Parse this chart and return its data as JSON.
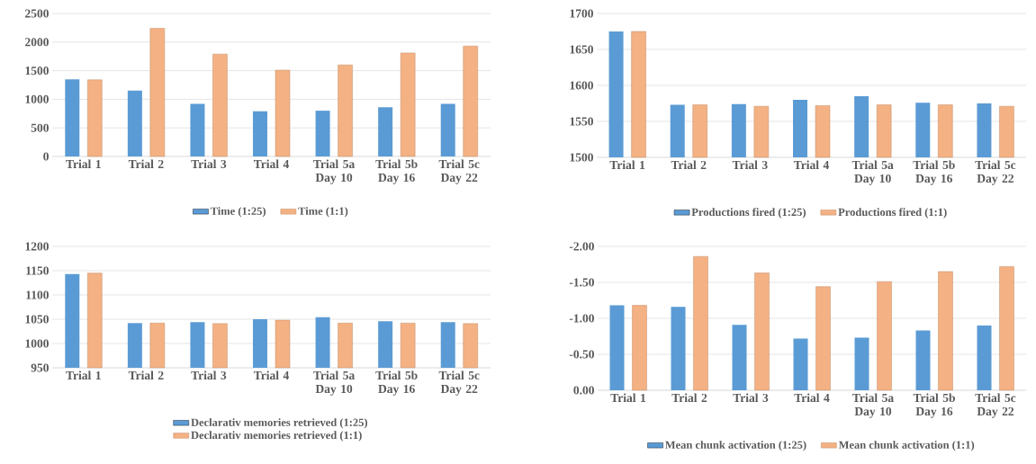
{
  "chart_data": [
    {
      "type": "bar",
      "categories": [
        "Trial 1",
        "Trial 2",
        "Trial 3",
        "Trial 4",
        "Trial 5a Day 10",
        "Trial 5b Day 16",
        "Trial 5c Day 22"
      ],
      "ylim": [
        0,
        2500
      ],
      "yticks": [
        0,
        500,
        1000,
        1500,
        2000,
        2500
      ],
      "grid": "y",
      "legend": "bottom",
      "series": [
        {
          "name": "Time (1:25)",
          "color": "#5b9bd5",
          "values": [
            1350,
            1150,
            920,
            790,
            800,
            860,
            920
          ]
        },
        {
          "name": "Time (1:1)",
          "color": "#f4b183",
          "values": [
            1340,
            2240,
            1790,
            1510,
            1600,
            1810,
            1930
          ]
        }
      ]
    },
    {
      "type": "bar",
      "categories": [
        "Trial 1",
        "Trial 2",
        "Trial 3",
        "Trial 4",
        "Trial 5a Day 10",
        "Trial 5b Day 16",
        "Trial 5c Day 22"
      ],
      "ylim": [
        1500,
        1700
      ],
      "yticks": [
        1500,
        1550,
        1600,
        1650,
        1700
      ],
      "grid": "y",
      "legend": "bottom",
      "series": [
        {
          "name": "Productions fired (1:25)",
          "color": "#5b9bd5",
          "values": [
            1675,
            1573,
            1574,
            1580,
            1585,
            1576,
            1575
          ]
        },
        {
          "name": "Productions fired (1:1)",
          "color": "#f4b183",
          "values": [
            1675,
            1573,
            1571,
            1572,
            1573,
            1573,
            1571
          ]
        }
      ]
    },
    {
      "type": "bar",
      "categories": [
        "Trial 1",
        "Trial 2",
        "Trial 3",
        "Trial 4",
        "Trial 5a Day 10",
        "Trial 5b Day 16",
        "Trial 5c Day 22"
      ],
      "ylim": [
        950,
        1200
      ],
      "yticks": [
        950,
        1000,
        1050,
        1100,
        1150,
        1200
      ],
      "grid": "y",
      "legend": "bottom",
      "series": [
        {
          "name": "Declarativ memories retrieved (1:25)",
          "color": "#5b9bd5",
          "values": [
            1143,
            1042,
            1044,
            1050,
            1054,
            1046,
            1044
          ]
        },
        {
          "name": "Declarativ memories retrieved (1:1)",
          "color": "#f4b183",
          "values": [
            1145,
            1042,
            1041,
            1048,
            1042,
            1042,
            1041
          ]
        }
      ]
    },
    {
      "type": "bar",
      "categories": [
        "Trial 1",
        "Trial 2",
        "Trial 3",
        "Trial 4",
        "Trial 5a Day 10",
        "Trial 5b Day 16",
        "Trial 5c Day 22"
      ],
      "ylim": [
        0,
        -2
      ],
      "yticks": [
        {
          "value": 0,
          "label": "0.00"
        },
        {
          "value": -0.5,
          "label": "-0.50"
        },
        {
          "value": -1,
          "label": "-1.00"
        },
        {
          "value": -1.5,
          "label": "-1.50"
        },
        {
          "value": -2,
          "label": "-2.00"
        }
      ],
      "grid": "y",
      "legend": "bottom",
      "series": [
        {
          "name": "Mean chunk activation (1:25)",
          "color": "#5b9bd5",
          "values": [
            -1.18,
            -1.16,
            -0.91,
            -0.72,
            -0.73,
            -0.83,
            -0.9
          ]
        },
        {
          "name": "Mean chunk activation (1:1)",
          "color": "#f4b183",
          "values": [
            -1.18,
            -1.86,
            -1.63,
            -1.44,
            -1.51,
            -1.65,
            -1.72
          ]
        }
      ]
    }
  ]
}
